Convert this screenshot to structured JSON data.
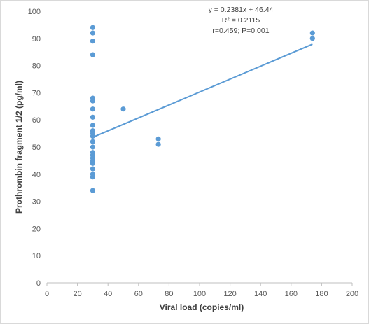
{
  "chart_data": {
    "type": "scatter",
    "title": "",
    "xlabel": "Viral load (copies/ml)",
    "ylabel": "Prothrombin fragment 1/2 (pg/ml)",
    "xlim": [
      0,
      200
    ],
    "ylim": [
      0,
      100
    ],
    "x_ticks": [
      "0",
      "20",
      "40",
      "60",
      "80",
      "100",
      "120",
      "140",
      "160",
      "180",
      "200"
    ],
    "y_ticks": [
      "0",
      "10",
      "20",
      "30",
      "40",
      "50",
      "60",
      "70",
      "80",
      "90",
      "100"
    ],
    "grid": false,
    "legend": "none",
    "point_color": "#5b9bd5",
    "trendline_color": "#5b9bd5",
    "annotations": [
      "y = 0.2381x + 46.44",
      "R² = 0.2115",
      "r=0.459; P=0.001"
    ],
    "trendline": {
      "slope": 0.2381,
      "intercept": 46.44,
      "x_range": [
        30,
        174
      ]
    },
    "points": [
      {
        "x": 30,
        "y": 94
      },
      {
        "x": 30,
        "y": 92
      },
      {
        "x": 30,
        "y": 89
      },
      {
        "x": 30,
        "y": 84
      },
      {
        "x": 30,
        "y": 68
      },
      {
        "x": 30,
        "y": 67
      },
      {
        "x": 30,
        "y": 64
      },
      {
        "x": 30,
        "y": 61
      },
      {
        "x": 30,
        "y": 58
      },
      {
        "x": 30,
        "y": 56
      },
      {
        "x": 30,
        "y": 55
      },
      {
        "x": 30,
        "y": 54
      },
      {
        "x": 30,
        "y": 52
      },
      {
        "x": 30,
        "y": 50
      },
      {
        "x": 30,
        "y": 48
      },
      {
        "x": 30,
        "y": 47
      },
      {
        "x": 30,
        "y": 46
      },
      {
        "x": 30,
        "y": 45
      },
      {
        "x": 30,
        "y": 44
      },
      {
        "x": 30,
        "y": 42
      },
      {
        "x": 30,
        "y": 40
      },
      {
        "x": 30,
        "y": 39
      },
      {
        "x": 30,
        "y": 34
      },
      {
        "x": 50,
        "y": 64
      },
      {
        "x": 73,
        "y": 53
      },
      {
        "x": 73,
        "y": 51
      },
      {
        "x": 174,
        "y": 92
      },
      {
        "x": 174,
        "y": 90
      }
    ]
  }
}
